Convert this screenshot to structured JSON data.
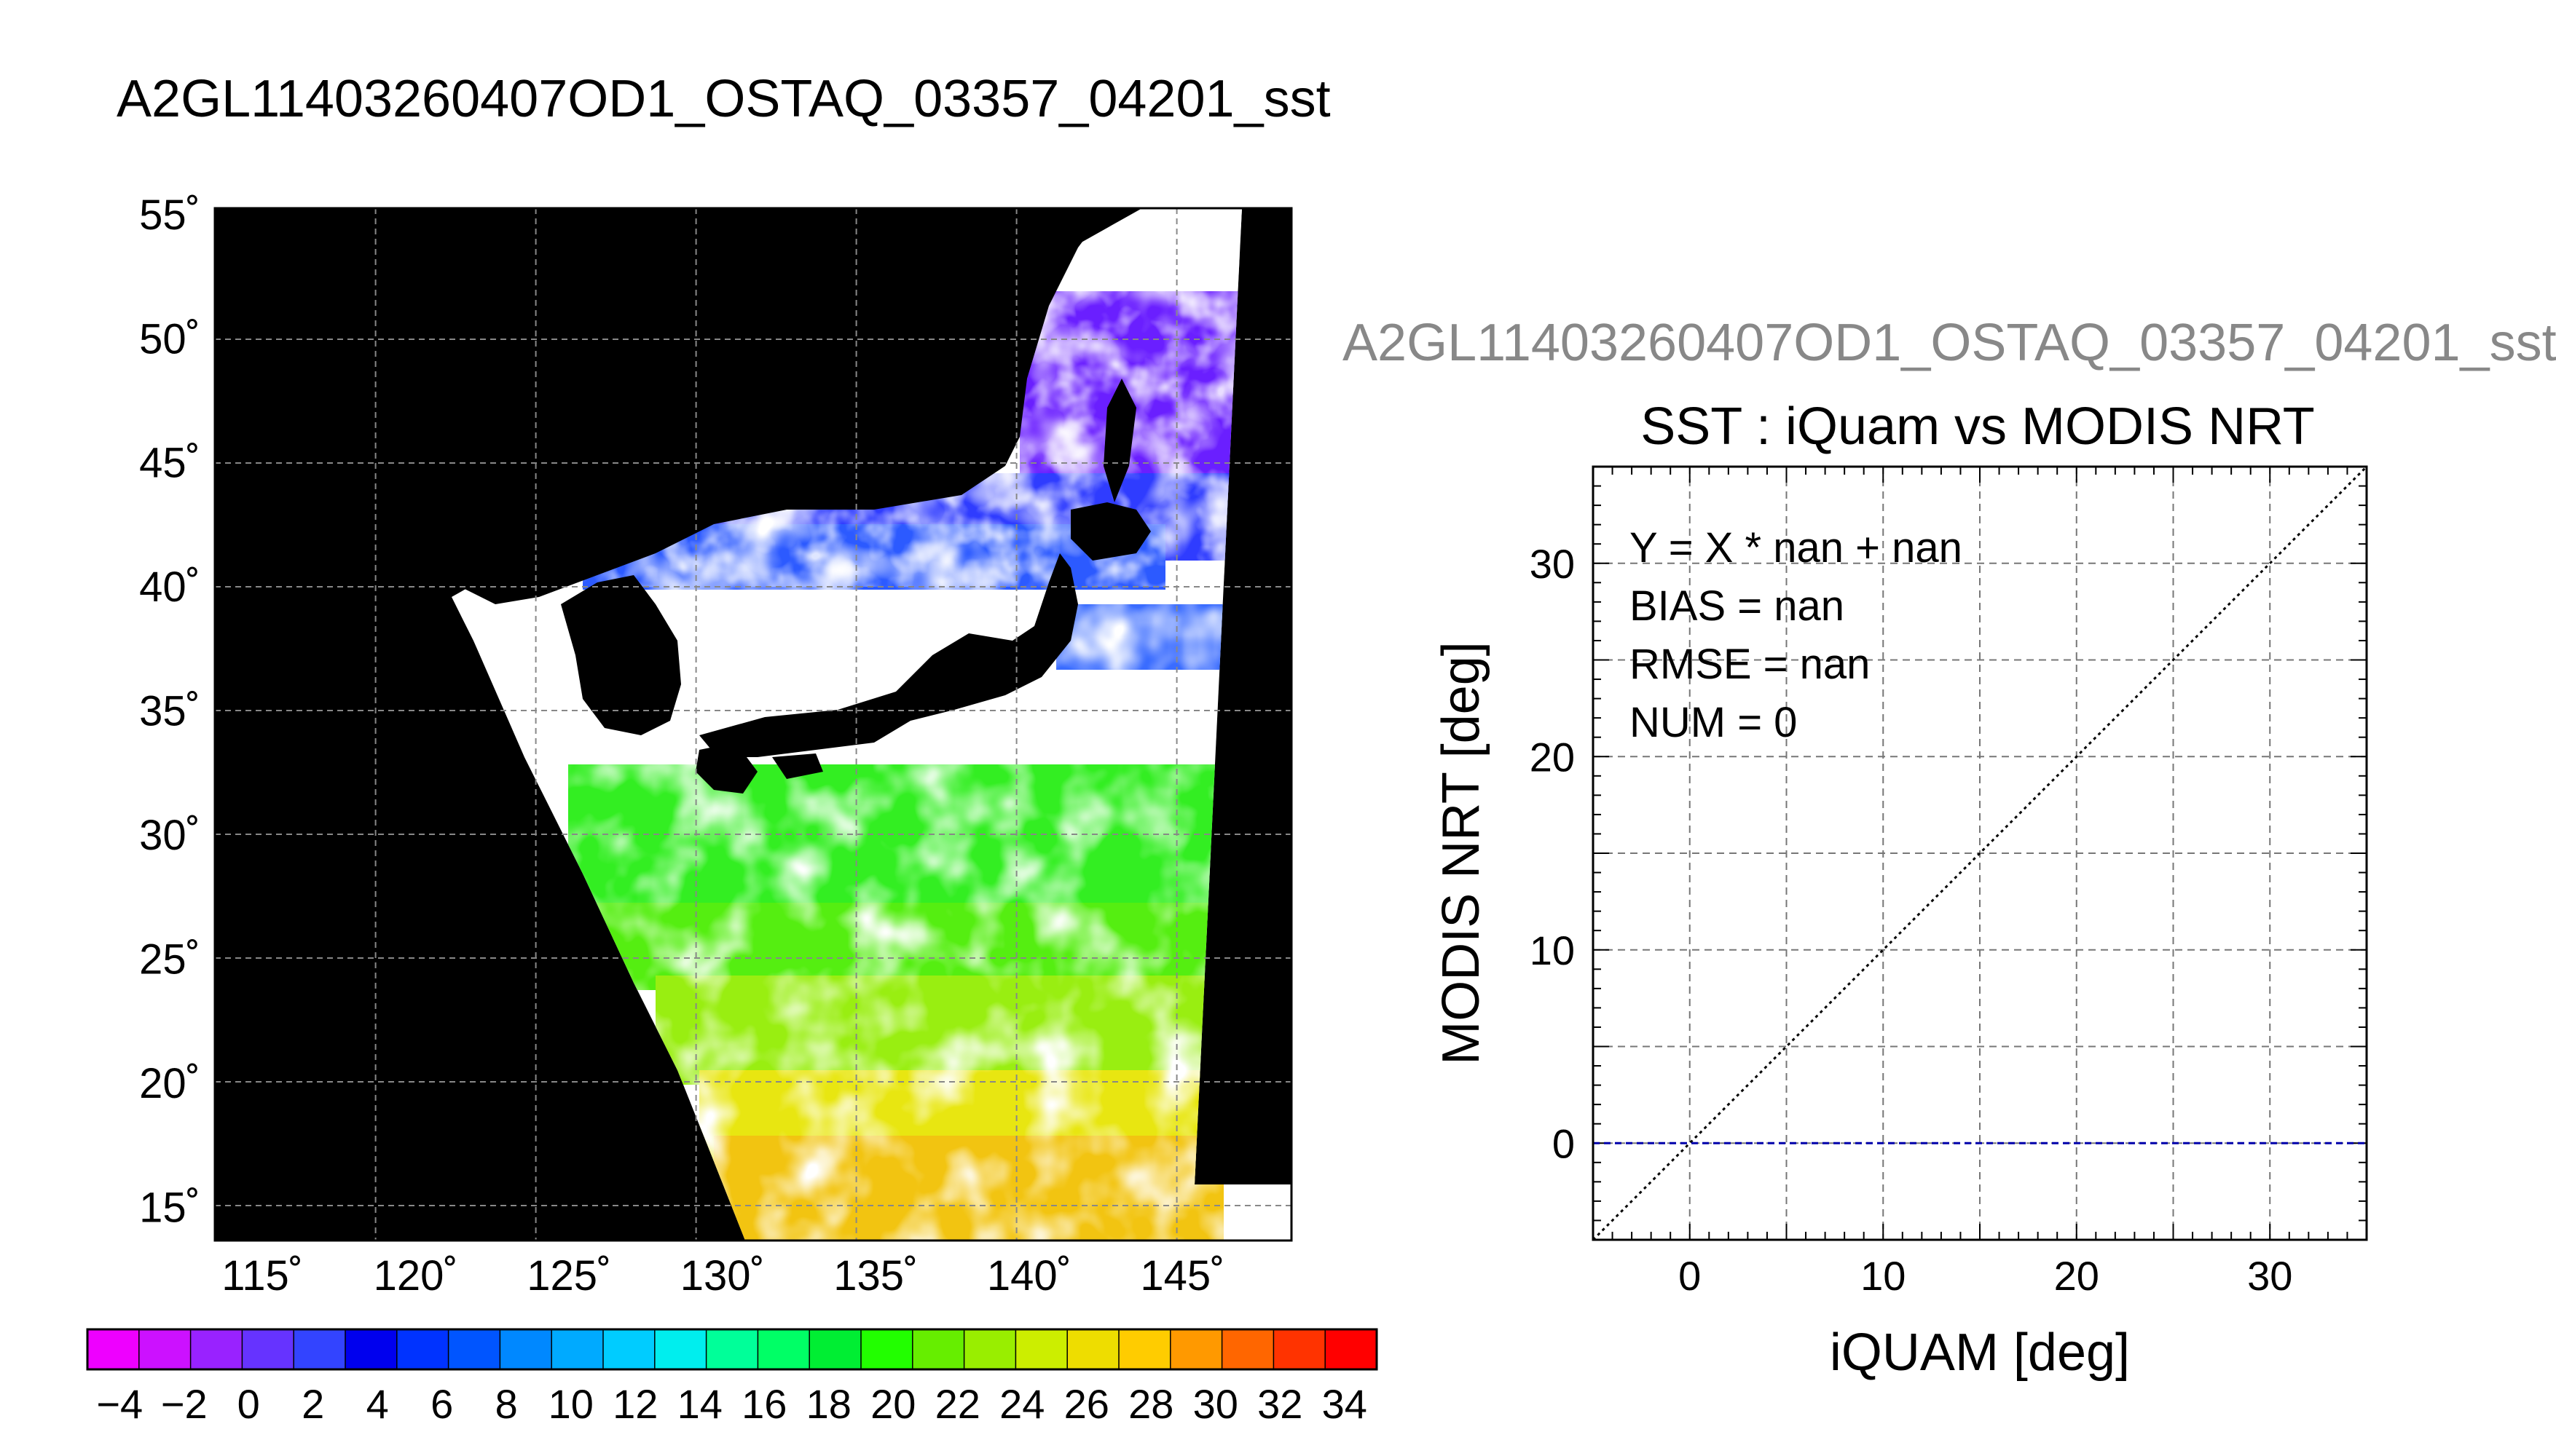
{
  "map_title": "A2GL11403260407OD1_OSTAQ_03357_04201_sst",
  "scatter_title": "A2GL11403260407OD1_OSTAQ_03357_04201_sst",
  "chart_data": [
    {
      "type": "heatmap",
      "kind": "sea-surface-temperature-map",
      "lat_ticks": [
        "55˚",
        "50˚",
        "45˚",
        "40˚",
        "35˚",
        "30˚",
        "25˚",
        "20˚",
        "15˚"
      ],
      "lon_ticks": [
        "115˚",
        "120˚",
        "125˚",
        "130˚",
        "135˚",
        "140˚",
        "145˚"
      ],
      "lat_range": [
        13.6,
        55.2
      ],
      "lon_range": [
        113.5,
        148.6
      ],
      "grid": true,
      "colorbar": {
        "ticks": [
          "−4",
          "−2",
          "0",
          "2",
          "4",
          "6",
          "8",
          "10",
          "12",
          "14",
          "16",
          "18",
          "20",
          "22",
          "24",
          "26",
          "28",
          "30",
          "32",
          "34"
        ],
        "range": [
          -5,
          35
        ],
        "colors": [
          "#ee00ff",
          "#cc11ff",
          "#9922ff",
          "#6633ff",
          "#3344ff",
          "#0000ee",
          "#0033ff",
          "#0055ff",
          "#0088ff",
          "#00aaff",
          "#00ccff",
          "#00eeee",
          "#00ff99",
          "#00ff66",
          "#00ee33",
          "#22ff00",
          "#66ee00",
          "#99ee00",
          "#ccee00",
          "#eedd00",
          "#ffcc00",
          "#ff9900",
          "#ff6600",
          "#ff3300",
          "#ff0000"
        ]
      }
    },
    {
      "type": "scatter",
      "title": "SST : iQuam vs MODIS NRT",
      "xlabel": "iQUAM [deg]",
      "ylabel": "MODIS NRT [deg]",
      "xlim": [
        -5,
        35
      ],
      "ylim": [
        -5,
        35
      ],
      "xticks": [
        "0",
        "10",
        "20",
        "30"
      ],
      "yticks": [
        "0",
        "10",
        "20",
        "30"
      ],
      "grid": true,
      "points": [],
      "lines": [
        {
          "name": "1:1 reference",
          "style": "dotted",
          "color": "#000000",
          "x": [
            -5,
            35
          ],
          "y": [
            -5,
            35
          ]
        },
        {
          "name": "fit",
          "style": "dashed",
          "color": "#0000aa",
          "x": [
            -5,
            35
          ],
          "y": [
            0,
            0
          ]
        }
      ],
      "stats": {
        "fit": "Y = X * nan + nan",
        "bias": "BIAS = nan",
        "rmse": "RMSE = nan",
        "num": "NUM = 0"
      }
    }
  ]
}
